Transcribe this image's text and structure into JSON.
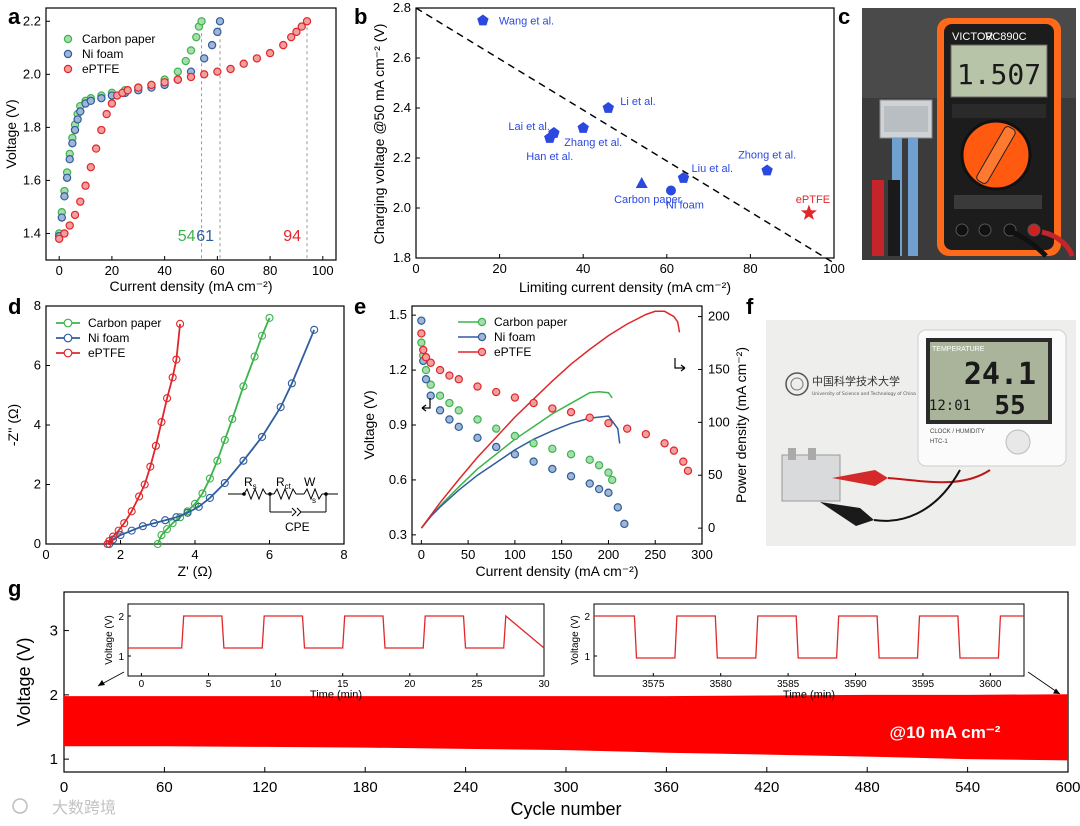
{
  "colors": {
    "carbon": "#3cb44b",
    "nifoam": "#2f5d9e",
    "eptfe": "#e0272a",
    "marker_b": "#2b49e0"
  },
  "watermark": "大数跨境",
  "photo_c": {
    "meter_brand": "VICTOR",
    "meter_model": "VC890C",
    "reading": "1.507"
  },
  "photo_f": {
    "logo_text": "中国科学技术大学",
    "logo_sub": "University of Science and Technology of China",
    "display_top_label": "TEMPERATURE",
    "temp": "24.1",
    "humidity": "55",
    "time": "12:01",
    "footer": "CLOCK / HUMIDITY",
    "model": "HTC-1"
  },
  "chart_data": [
    {
      "panel": "a",
      "type": "scatter",
      "xlabel": "Current density (mA cm⁻²)",
      "ylabel": "Voltage (V)",
      "xlim": [
        -5,
        105
      ],
      "ylim": [
        1.3,
        2.25
      ],
      "xticks": [
        "0",
        "20",
        "40",
        "60",
        "80",
        "100"
      ],
      "yticks": [
        "1.4",
        "1.6",
        "1.8",
        "2.0",
        "2.2"
      ],
      "legend": [
        "Carbon paper",
        "Ni foam",
        "ePTFE"
      ],
      "series": [
        {
          "name": "Carbon paper",
          "color": "#3cb44b",
          "x": [
            0,
            1,
            2,
            3,
            4,
            5,
            6,
            7,
            8,
            10,
            12,
            16,
            20,
            25,
            30,
            35,
            40,
            45,
            48,
            50,
            52,
            53,
            54
          ],
          "y": [
            1.4,
            1.48,
            1.56,
            1.63,
            1.7,
            1.76,
            1.81,
            1.85,
            1.88,
            1.9,
            1.91,
            1.92,
            1.93,
            1.94,
            1.95,
            1.96,
            1.98,
            2.01,
            2.05,
            2.09,
            2.14,
            2.18,
            2.2
          ]
        },
        {
          "name": "Ni foam",
          "color": "#2f5d9e",
          "x": [
            0,
            1,
            2,
            3,
            4,
            5,
            6,
            7,
            8,
            10,
            12,
            16,
            20,
            25,
            30,
            35,
            40,
            45,
            50,
            55,
            58,
            60,
            61
          ],
          "y": [
            1.39,
            1.46,
            1.54,
            1.61,
            1.68,
            1.74,
            1.79,
            1.83,
            1.86,
            1.89,
            1.9,
            1.91,
            1.92,
            1.93,
            1.94,
            1.95,
            1.96,
            1.98,
            2.01,
            2.06,
            2.11,
            2.16,
            2.2
          ]
        },
        {
          "name": "ePTFE",
          "color": "#e0272a",
          "x": [
            0,
            2,
            4,
            6,
            8,
            10,
            12,
            14,
            16,
            18,
            20,
            22,
            24,
            26,
            30,
            35,
            40,
            45,
            50,
            55,
            60,
            65,
            70,
            75,
            80,
            85,
            88,
            90,
            92,
            94
          ],
          "y": [
            1.38,
            1.4,
            1.43,
            1.47,
            1.52,
            1.58,
            1.65,
            1.72,
            1.79,
            1.85,
            1.89,
            1.92,
            1.93,
            1.94,
            1.95,
            1.96,
            1.97,
            1.98,
            1.99,
            2.0,
            2.01,
            2.02,
            2.04,
            2.06,
            2.08,
            2.11,
            2.14,
            2.16,
            2.18,
            2.2
          ]
        }
      ],
      "limit_lines": [
        54,
        61,
        94
      ],
      "limit_labels": [
        "54",
        "61",
        "94"
      ]
    },
    {
      "panel": "b",
      "type": "scatter",
      "xlabel": "Limiting current density (mA cm⁻²)",
      "ylabel": "Charging voltage @50 mA cm⁻² (V)",
      "xlim": [
        0,
        100
      ],
      "ylim": [
        1.8,
        2.8
      ],
      "xticks": [
        "0",
        "20",
        "40",
        "60",
        "80",
        "100"
      ],
      "yticks": [
        "1.8",
        "2.0",
        "2.2",
        "2.4",
        "2.6",
        "2.8"
      ],
      "trend": [
        [
          0,
          2.8
        ],
        [
          100,
          1.78
        ]
      ],
      "points": [
        {
          "label": "Wang et al.",
          "x": 16,
          "y": 2.75,
          "marker": "pentagon"
        },
        {
          "label": "Li et al.",
          "x": 46,
          "y": 2.4,
          "marker": "pentagon"
        },
        {
          "label": "Lai et al.",
          "x": 33,
          "y": 2.3,
          "marker": "pentagon"
        },
        {
          "label": "Han et al.",
          "x": 32,
          "y": 2.28,
          "marker": "pentagon"
        },
        {
          "label": "Zhang et al.",
          "x": 40,
          "y": 2.32,
          "marker": "pentagon"
        },
        {
          "label": "Liu et al.",
          "x": 64,
          "y": 2.12,
          "marker": "pentagon"
        },
        {
          "label": "Zhong et al.",
          "x": 84,
          "y": 2.15,
          "marker": "pentagon"
        },
        {
          "label": "Carbon paper",
          "x": 54,
          "y": 2.1,
          "marker": "triangle"
        },
        {
          "label": "Ni foam",
          "x": 61,
          "y": 2.07,
          "marker": "circle"
        },
        {
          "label": "ePTFE",
          "x": 94,
          "y": 1.98,
          "marker": "star"
        }
      ]
    },
    {
      "panel": "d",
      "type": "scatter",
      "xlabel": "Z' (Ω)",
      "ylabel": "-Z'' (Ω)",
      "xlim": [
        0,
        8
      ],
      "ylim": [
        0,
        8
      ],
      "xticks": [
        "0",
        "2",
        "4",
        "6",
        "8"
      ],
      "yticks": [
        "0",
        "2",
        "4",
        "6",
        "8"
      ],
      "legend": [
        "Carbon paper",
        "Ni foam",
        "ePTFE"
      ],
      "series": [
        {
          "name": "Carbon paper",
          "color": "#3cb44b",
          "x": [
            3.0,
            3.1,
            3.25,
            3.4,
            3.6,
            3.8,
            4.0,
            4.2,
            4.4,
            4.6,
            4.8,
            5.0,
            5.3,
            5.6,
            5.8,
            6.0
          ],
          "y": [
            0.0,
            0.3,
            0.5,
            0.7,
            0.9,
            1.1,
            1.35,
            1.7,
            2.2,
            2.8,
            3.5,
            4.2,
            5.3,
            6.3,
            7.0,
            7.6
          ]
        },
        {
          "name": "Ni foam",
          "color": "#2f5d9e",
          "x": [
            1.7,
            1.8,
            2.0,
            2.3,
            2.6,
            2.9,
            3.2,
            3.5,
            3.8,
            4.1,
            4.4,
            4.8,
            5.3,
            5.8,
            6.3,
            6.6,
            7.2
          ],
          "y": [
            0.0,
            0.15,
            0.3,
            0.45,
            0.6,
            0.7,
            0.8,
            0.9,
            1.05,
            1.25,
            1.55,
            2.05,
            2.8,
            3.6,
            4.6,
            5.4,
            7.2
          ]
        },
        {
          "name": "ePTFE",
          "color": "#e0272a",
          "x": [
            1.65,
            1.7,
            1.8,
            1.95,
            2.1,
            2.3,
            2.5,
            2.65,
            2.8,
            2.95,
            3.1,
            3.25,
            3.4,
            3.5,
            3.6
          ],
          "y": [
            0.0,
            0.1,
            0.25,
            0.45,
            0.7,
            1.1,
            1.6,
            2.0,
            2.6,
            3.3,
            4.1,
            4.9,
            5.6,
            6.2,
            7.4
          ]
        }
      ],
      "circuit": {
        "r_s": "R",
        "r_s_sub": "s",
        "r_ct": "R",
        "r_ct_sub": "ct",
        "w": "W",
        "w_sub": "s",
        "cpe": "CPE"
      }
    },
    {
      "panel": "e",
      "type": "line",
      "xlabel": "Current density (mA cm⁻²)",
      "ylabel_left": "Voltage (V)",
      "ylabel_right": "Power density (mA cm⁻²)",
      "xlim": [
        -10,
        300
      ],
      "ylim_left": [
        0.25,
        1.55
      ],
      "ylim_right": [
        -15,
        210
      ],
      "xticks": [
        "0",
        "50",
        "100",
        "150",
        "200",
        "250",
        "300"
      ],
      "yticks_left": [
        "0.3",
        "0.6",
        "0.9",
        "1.2",
        "1.5"
      ],
      "yticks_right": [
        "0",
        "50",
        "100",
        "150",
        "200"
      ],
      "legend": [
        "Carbon paper",
        "Ni foam",
        "ePTFE"
      ],
      "voltage_series": [
        {
          "name": "Carbon paper",
          "color": "#3cb44b",
          "x": [
            0,
            2,
            5,
            10,
            20,
            30,
            40,
            60,
            80,
            100,
            120,
            140,
            160,
            180,
            190,
            200,
            204
          ],
          "y": [
            1.35,
            1.28,
            1.2,
            1.12,
            1.06,
            1.02,
            0.98,
            0.93,
            0.88,
            0.84,
            0.8,
            0.77,
            0.74,
            0.71,
            0.68,
            0.64,
            0.6
          ]
        },
        {
          "name": "Ni foam",
          "color": "#2f5d9e",
          "x": [
            0,
            2,
            5,
            10,
            20,
            30,
            40,
            60,
            80,
            100,
            120,
            140,
            160,
            180,
            190,
            200,
            210,
            217
          ],
          "y": [
            1.47,
            1.25,
            1.15,
            1.06,
            0.98,
            0.93,
            0.89,
            0.83,
            0.78,
            0.74,
            0.7,
            0.66,
            0.62,
            0.58,
            0.55,
            0.53,
            0.45,
            0.36
          ]
        },
        {
          "name": "ePTFE",
          "color": "#e0272a",
          "x": [
            0,
            2,
            5,
            10,
            20,
            30,
            40,
            60,
            80,
            100,
            120,
            140,
            160,
            180,
            200,
            220,
            240,
            260,
            270,
            280,
            285
          ],
          "y": [
            1.4,
            1.31,
            1.27,
            1.24,
            1.2,
            1.17,
            1.15,
            1.11,
            1.08,
            1.05,
            1.02,
            0.99,
            0.97,
            0.94,
            0.91,
            0.88,
            0.85,
            0.8,
            0.76,
            0.7,
            0.65
          ]
        }
      ],
      "power_series": [
        {
          "name": "Carbon paper",
          "color": "#3cb44b",
          "x": [
            0,
            10,
            20,
            40,
            60,
            80,
            100,
            120,
            140,
            160,
            180,
            190,
            200,
            204
          ],
          "y": [
            0,
            11,
            21,
            39,
            56,
            70,
            84,
            96,
            108,
            118,
            128,
            129,
            128,
            123
          ]
        },
        {
          "name": "Ni foam",
          "color": "#2f5d9e",
          "x": [
            0,
            10,
            20,
            40,
            60,
            80,
            100,
            120,
            140,
            160,
            180,
            190,
            200,
            210,
            212
          ],
          "y": [
            0,
            11,
            20,
            36,
            50,
            62,
            74,
            84,
            92,
            99,
            104,
            105,
            106,
            94,
            80
          ]
        },
        {
          "name": "ePTFE",
          "color": "#e0272a",
          "x": [
            0,
            10,
            20,
            40,
            60,
            80,
            100,
            120,
            140,
            160,
            180,
            200,
            220,
            240,
            250,
            260,
            270,
            274,
            276
          ],
          "y": [
            0,
            12,
            24,
            46,
            67,
            86,
            105,
            122,
            139,
            155,
            169,
            182,
            193,
            202,
            205,
            205,
            200,
            195,
            185
          ]
        }
      ]
    },
    {
      "panel": "g",
      "type": "area",
      "xlabel": "Cycle number",
      "ylabel": "Voltage (V)",
      "xlim": [
        0,
        600
      ],
      "ylim": [
        0.8,
        3.6
      ],
      "xticks": [
        "0",
        "60",
        "120",
        "180",
        "240",
        "300",
        "360",
        "420",
        "480",
        "540",
        "600"
      ],
      "yticks": [
        "1",
        "2",
        "3"
      ],
      "upper_v": [
        1.98,
        1.98,
        1.98,
        1.98,
        1.98,
        1.98,
        1.98,
        1.99,
        2.0,
        2.0,
        2.01
      ],
      "lower_v": [
        1.2,
        1.2,
        1.19,
        1.18,
        1.16,
        1.14,
        1.1,
        1.07,
        1.04,
        1.0,
        0.98
      ],
      "cycle_points": [
        0,
        60,
        120,
        180,
        240,
        300,
        360,
        420,
        480,
        540,
        600
      ],
      "annotation": "@10 mA cm⁻²",
      "insets": [
        {
          "xlabel": "Time (min)",
          "ylabel": "Voltage (V)",
          "xlim": [
            -1,
            30
          ],
          "ylim": [
            0.5,
            2.3
          ],
          "xticks": [
            "0",
            "5",
            "10",
            "15",
            "20",
            "25",
            "30"
          ],
          "yticks": [
            "1",
            "2"
          ],
          "start_high": 3,
          "period": 6,
          "duty": 0.5,
          "low": 1.2,
          "high": 2.0
        },
        {
          "xlabel": "Time (min)",
          "ylabel": "Voltage (V)",
          "xlim": [
            3570.6,
            3602.5
          ],
          "ylim": [
            0.5,
            2.3
          ],
          "xticks": [
            "3575",
            "3580",
            "3585",
            "3590",
            "3595",
            "3600"
          ],
          "yticks": [
            "1",
            "2"
          ],
          "start_high": 3570.6,
          "period": 6,
          "duty": 0.5,
          "low": 0.95,
          "high": 2.0
        }
      ]
    }
  ]
}
